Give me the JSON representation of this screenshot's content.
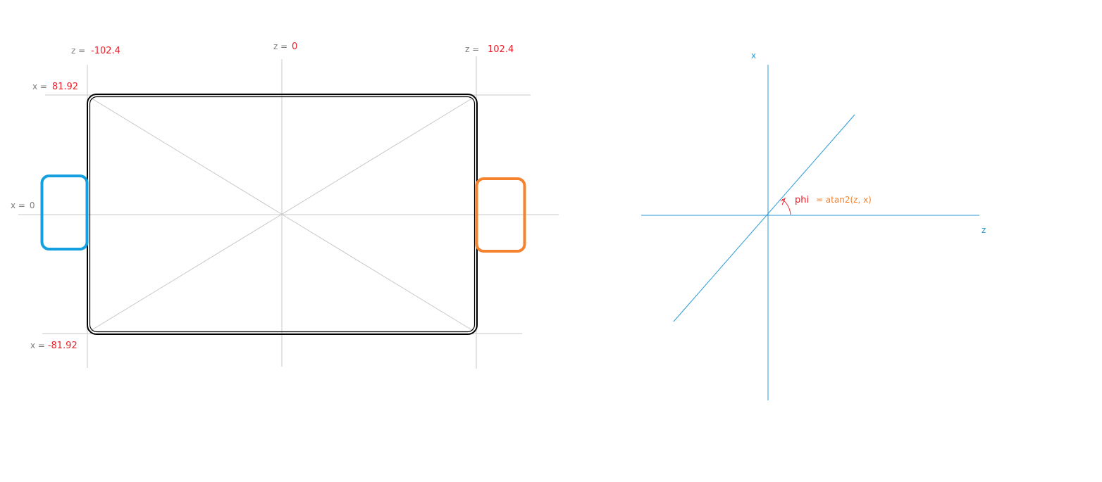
{
  "colors": {
    "background": "#ffffff",
    "grid_line": "#c8c8c8",
    "outline": "#000000",
    "label_gray": "#7f7f7f",
    "value_red": "#e8202a",
    "left_tab": "#14a0e0",
    "right_tab": "#f5822d",
    "axis_blue": "#2a9ad8",
    "formula_orange": "#f5822d"
  },
  "left_diagram": {
    "z_labels": [
      {
        "prefix": "z =",
        "value": "-102.4"
      },
      {
        "prefix": "z =",
        "value": "0"
      },
      {
        "prefix": "z =",
        "value": "102.4"
      }
    ],
    "x_labels": [
      {
        "prefix": "x =",
        "value": "81.92"
      },
      {
        "prefix": "x =",
        "value": "0"
      },
      {
        "prefix": "x =",
        "value": "-81.92"
      }
    ]
  },
  "right_diagram": {
    "x_axis_label": "x",
    "z_axis_label": "z",
    "angle_name": "phi",
    "angle_formula": "= atan2(z, x)"
  }
}
